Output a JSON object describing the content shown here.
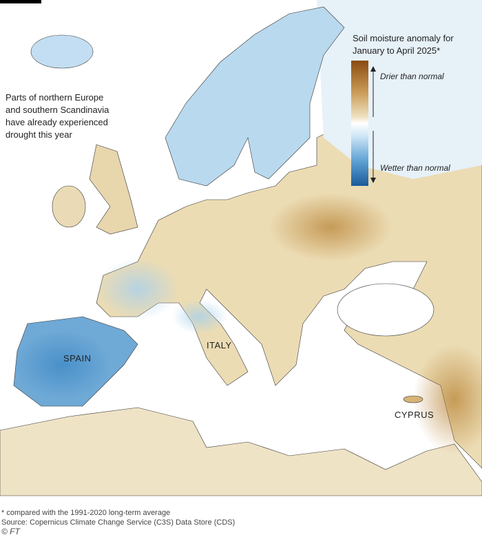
{
  "legend": {
    "title": [
      "Soil moisture anomaly for",
      "January to April 2025*"
    ],
    "high_label": "Drier than normal",
    "low_label": "Wetter than normal"
  },
  "annotation": [
    "Parts of northern Europe",
    "and southern Scandinavia",
    "have already experienced",
    "drought this year"
  ],
  "labels": [
    "SPAIN",
    "ITALY",
    "CYPRUS"
  ],
  "footer": {
    "note": "* compared with the 1991-2020 long-term average",
    "source": "Source: Copernicus Climate Change Service (C3S) Data Store (CDS)",
    "credit": "© FT"
  }
}
